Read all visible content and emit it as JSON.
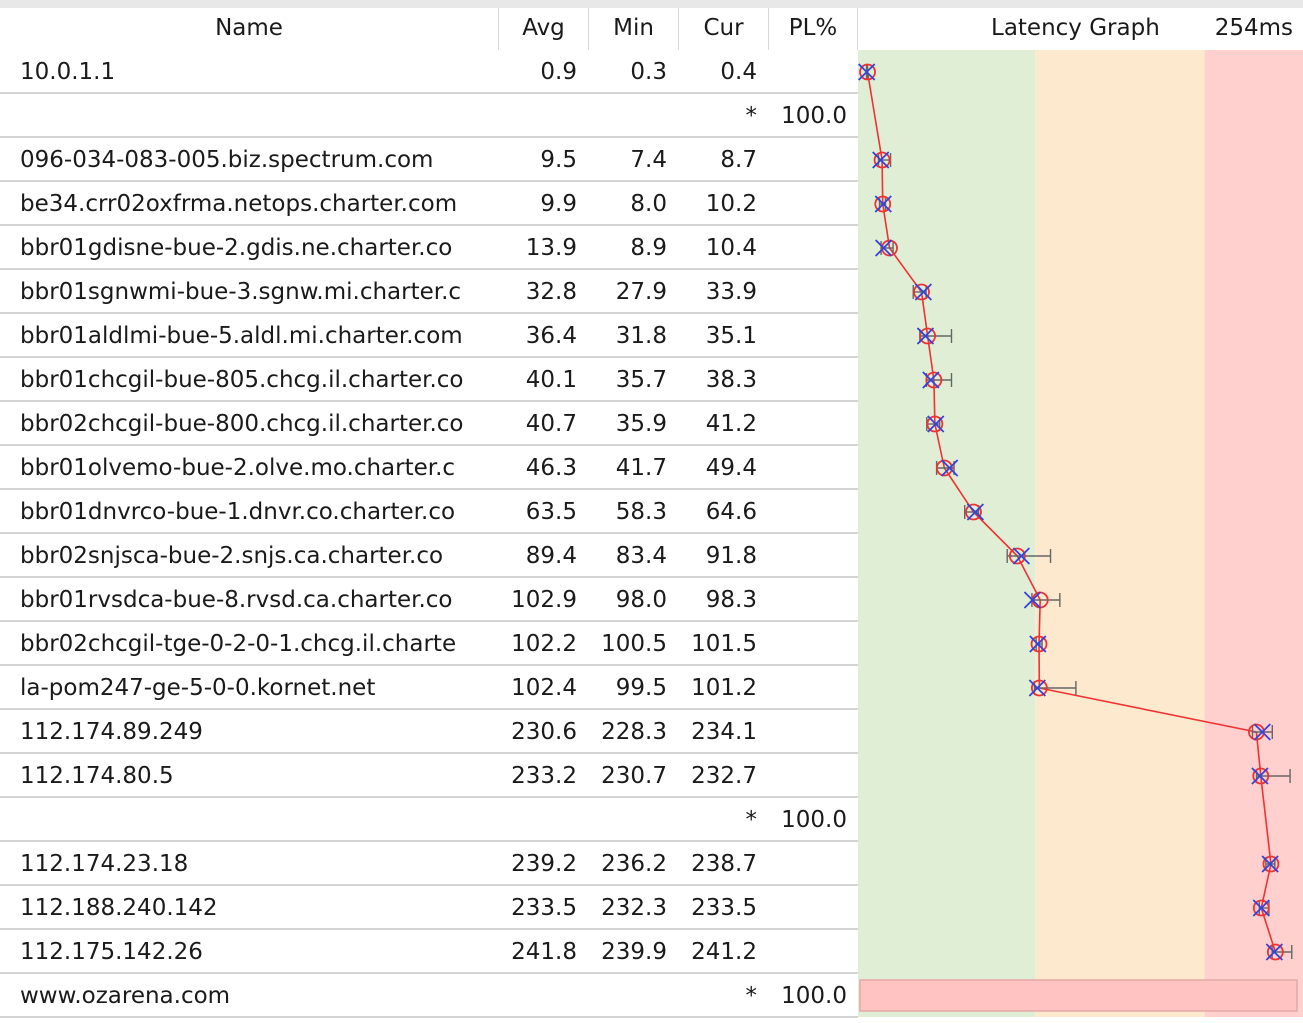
{
  "header": {
    "name": "Name",
    "avg": "Avg",
    "min": "Min",
    "cur": "Cur",
    "pl": "PL%",
    "graph_title": "Latency Graph",
    "graph_max": "254ms"
  },
  "graph": {
    "max_ms": 254,
    "zone_colors": [
      "#e0eed6",
      "#fde9cd",
      "#ffd0cd"
    ],
    "zone_bounds_ms": [
      0,
      100,
      200,
      254
    ],
    "line_color": "#ee3333",
    "avg_marker_color": "#ee3333",
    "cur_marker_color": "#3344dd",
    "range_color": "#666666",
    "loss_bar_color": "#ffc4c1"
  },
  "rows": [
    {
      "name": "10.0.1.1",
      "avg": "0.9",
      "min": "0.3",
      "cur": "0.4",
      "pl": "",
      "max": 0.9
    },
    {
      "name": "",
      "avg": "",
      "min": "",
      "cur": "*",
      "pl": "100.0"
    },
    {
      "name": "096-034-083-005.biz.spectrum.com",
      "avg": "9.5",
      "min": "7.4",
      "cur": "8.7",
      "pl": "",
      "max": 14.5
    },
    {
      "name": "be34.crr02oxfrma.netops.charter.com",
      "avg": "9.9",
      "min": "8.0",
      "cur": "10.2",
      "pl": "",
      "max": 11.5
    },
    {
      "name": "bbr01gdisne-bue-2.gdis.ne.charter.co",
      "avg": "13.9",
      "min": "8.9",
      "cur": "10.4",
      "pl": "",
      "max": 16.0
    },
    {
      "name": "bbr01sgnwmi-bue-3.sgnw.mi.charter.c",
      "avg": "32.8",
      "min": "27.9",
      "cur": "33.9",
      "pl": "",
      "max": 35.5
    },
    {
      "name": "bbr01aldlmi-bue-5.aldl.mi.charter.com",
      "avg": "36.4",
      "min": "31.8",
      "cur": "35.1",
      "pl": "",
      "max": 50.5
    },
    {
      "name": "bbr01chcgil-bue-805.chcg.il.charter.co",
      "avg": "40.1",
      "min": "35.7",
      "cur": "38.3",
      "pl": "",
      "max": 50.5
    },
    {
      "name": "bbr02chcgil-bue-800.chcg.il.charter.co",
      "avg": "40.7",
      "min": "35.9",
      "cur": "41.2",
      "pl": "",
      "max": 43.5
    },
    {
      "name": "bbr01olvemo-bue-2.olve.mo.charter.c",
      "avg": "46.3",
      "min": "41.7",
      "cur": "49.4",
      "pl": "",
      "max": 52.0
    },
    {
      "name": "bbr01dnvrco-bue-1.dnvr.co.charter.co",
      "avg": "63.5",
      "min": "58.3",
      "cur": "64.6",
      "pl": "",
      "max": 66.5
    },
    {
      "name": "bbr02snjsca-bue-2.snjs.ca.charter.co",
      "avg": "89.4",
      "min": "83.4",
      "cur": "91.8",
      "pl": "",
      "max": 109.0
    },
    {
      "name": "bbr01rvsdca-bue-8.rvsd.ca.charter.co",
      "avg": "102.9",
      "min": "98.0",
      "cur": "98.3",
      "pl": "",
      "max": 114.5
    },
    {
      "name": "bbr02chcgil-tge-0-2-0-1.chcg.il.charte",
      "avg": "102.2",
      "min": "100.5",
      "cur": "101.5",
      "pl": "",
      "max": 104.0
    },
    {
      "name": "la-pom247-ge-5-0-0.kornet.net",
      "avg": "102.4",
      "min": "99.5",
      "cur": "101.2",
      "pl": "",
      "max": 124.0
    },
    {
      "name": "112.174.89.249",
      "avg": "230.6",
      "min": "228.3",
      "cur": "234.1",
      "pl": "",
      "max": 240.0
    },
    {
      "name": "112.174.80.5",
      "avg": "233.2",
      "min": "230.7",
      "cur": "232.7",
      "pl": "",
      "max": 250.5
    },
    {
      "name": "",
      "avg": "",
      "min": "",
      "cur": "*",
      "pl": "100.0"
    },
    {
      "name": "112.174.23.18",
      "avg": "239.2",
      "min": "236.2",
      "cur": "238.7",
      "pl": "",
      "max": 241.5
    },
    {
      "name": "112.188.240.142",
      "avg": "233.5",
      "min": "232.3",
      "cur": "233.5",
      "pl": "",
      "max": 238.0
    },
    {
      "name": "112.175.142.26",
      "avg": "241.8",
      "min": "239.9",
      "cur": "241.2",
      "pl": "",
      "max": 251.5
    },
    {
      "name": "www.ozarena.com",
      "avg": "",
      "min": "",
      "cur": "*",
      "pl": "100.0"
    }
  ]
}
